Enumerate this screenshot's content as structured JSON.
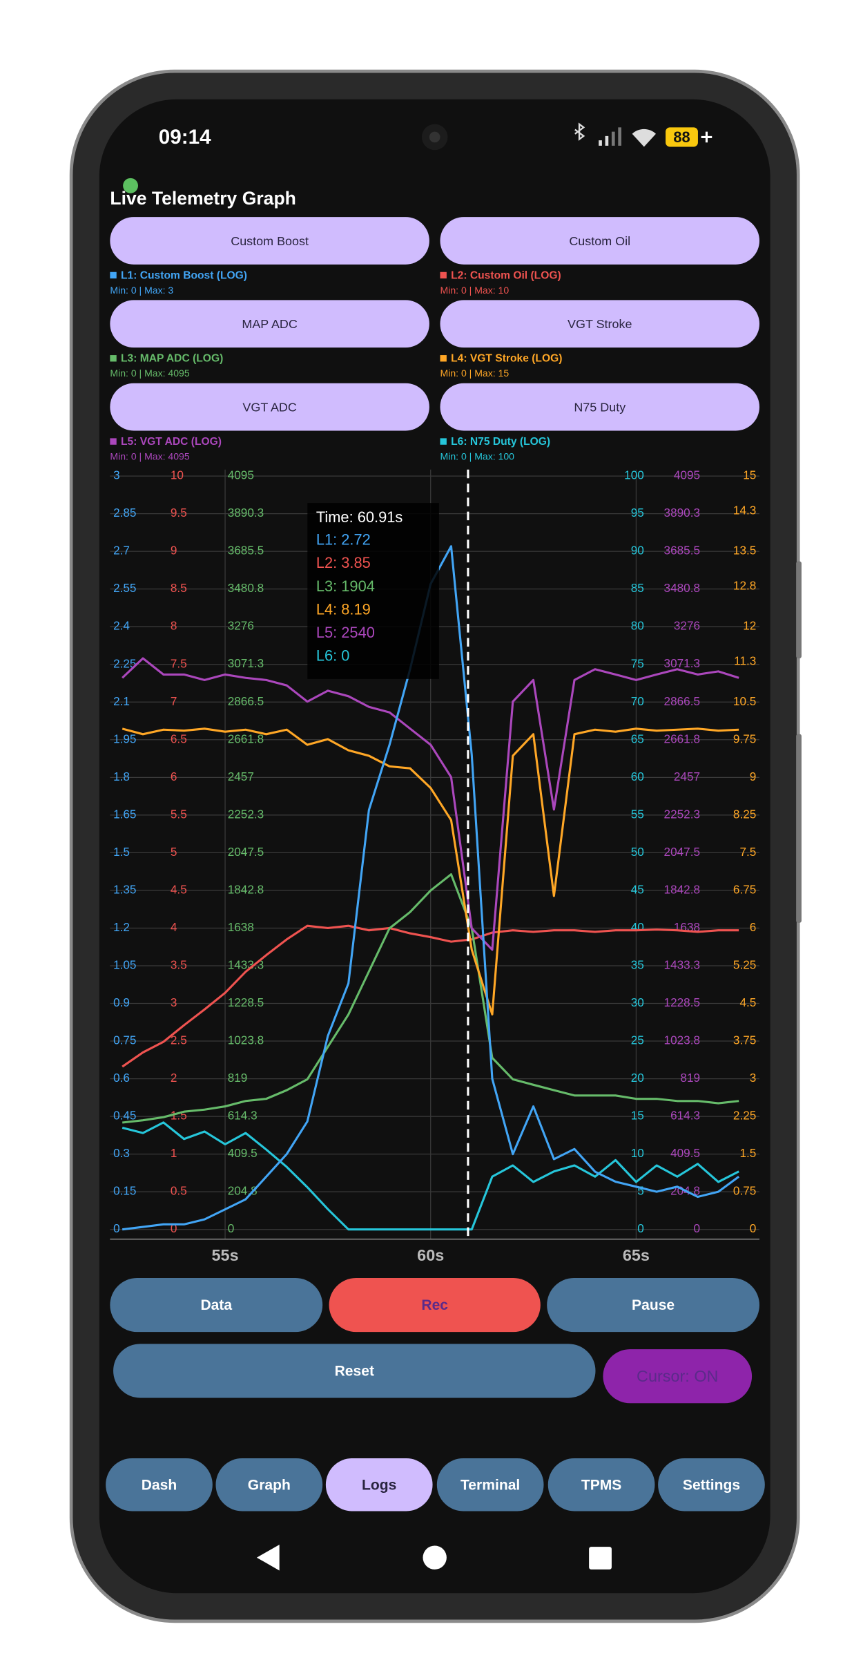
{
  "status_bar": {
    "time": "09:14",
    "battery": "88"
  },
  "title": "Live Telemetry Graph",
  "channels": [
    {
      "button": "Custom Boost",
      "range": "Min: 0 | Max: 3"
    },
    {
      "button": "Custom Oil",
      "range": "Min: 0 | Max: 10"
    },
    {
      "button": "MAP ADC",
      "range": "Min: 0 | Max: 4095"
    },
    {
      "button": "VGT Stroke",
      "range": "Min: 0 | Max: 15"
    },
    {
      "button": "VGT ADC",
      "range": "Min: 0 | Max: 4095"
    },
    {
      "button": "N75 Duty",
      "range": "Min: 0 | Max: 100"
    }
  ],
  "chart_data": {
    "type": "line",
    "x": [
      52.5,
      53,
      53.5,
      54,
      54.5,
      55,
      55.5,
      56,
      56.5,
      57,
      57.5,
      58,
      58.5,
      59,
      59.5,
      60,
      60.5,
      61,
      61.5,
      62,
      62.5,
      63,
      63.5,
      64,
      64.5,
      65,
      65.5,
      66,
      66.5,
      67,
      67.5
    ],
    "xlim": [
      52.2,
      68
    ],
    "xticks": [
      {
        "value": 55,
        "label": "55s"
      },
      {
        "value": 60,
        "label": "60s"
      },
      {
        "value": 65,
        "label": "65s"
      }
    ],
    "grid": true,
    "series": [
      {
        "name": "L1: Custom Boost (LOG)",
        "color": "#42a5f5",
        "ylim": [
          0,
          3
        ],
        "yticks": [
          0,
          0.15,
          0.3,
          0.45,
          0.6,
          0.75,
          0.9,
          1.05,
          1.2,
          1.35,
          1.5,
          1.65,
          1.8,
          1.95,
          2.1,
          2.25,
          2.4,
          2.55,
          2.7,
          2.85,
          3
        ],
        "values": [
          0,
          0.01,
          0.02,
          0.02,
          0.04,
          0.08,
          0.12,
          0.21,
          0.3,
          0.43,
          0.77,
          0.98,
          1.67,
          1.93,
          2.23,
          2.57,
          2.72,
          1.89,
          0.6,
          0.3,
          0.49,
          0.28,
          0.32,
          0.23,
          0.19,
          0.17,
          0.15,
          0.17,
          0.13,
          0.15,
          0.21
        ]
      },
      {
        "name": "L2: Custom Oil (LOG)",
        "color": "#ef5350",
        "ylim": [
          0,
          10
        ],
        "yticks": [
          0,
          0.5,
          1,
          1.5,
          2,
          2.5,
          3,
          3.5,
          4,
          4.5,
          5,
          5.5,
          6,
          6.5,
          7,
          7.5,
          8,
          8.5,
          9,
          9.5,
          10
        ],
        "values": [
          2.16,
          2.35,
          2.49,
          2.71,
          2.92,
          3.14,
          3.42,
          3.64,
          3.85,
          4.03,
          4,
          4.03,
          3.97,
          4,
          3.93,
          3.88,
          3.82,
          3.85,
          3.94,
          3.97,
          3.95,
          3.97,
          3.97,
          3.95,
          3.97,
          3.97,
          3.98,
          3.97,
          3.95,
          3.97,
          3.97
        ]
      },
      {
        "name": "L3: MAP ADC (LOG)",
        "color": "#66bb6a",
        "ylim": [
          0,
          4095
        ],
        "yticks": [
          0,
          204.8,
          409.5,
          614.3,
          819,
          1023.8,
          1228.5,
          1433.3,
          1638,
          1842.8,
          2047.5,
          2252.3,
          2457,
          2661.8,
          2866.5,
          3071.3,
          3276,
          3480.8,
          3685.5,
          3890.3,
          4095
        ],
        "values": [
          581,
          593,
          610,
          640,
          651,
          669,
          698,
          710,
          757,
          816,
          992,
          1168,
          1402,
          1637,
          1725,
          1842,
          1930,
          1637,
          933,
          816,
          786,
          757,
          728,
          728,
          728,
          710,
          710,
          698,
          698,
          686,
          698
        ]
      },
      {
        "name": "L4: VGT Stroke (LOG)",
        "color": "#ffa726",
        "ylim": [
          0,
          15
        ],
        "yticks": [
          0,
          0.75,
          1.5,
          2.25,
          3,
          3.75,
          4.5,
          5.25,
          6,
          6.75,
          7.5,
          8.25,
          9,
          9.75,
          10.5,
          11.3,
          12,
          12.8,
          13.5,
          14.3,
          15
        ],
        "values": [
          9.97,
          9.86,
          9.95,
          9.93,
          9.97,
          9.91,
          9.95,
          9.86,
          9.95,
          9.65,
          9.76,
          9.54,
          9.43,
          9.22,
          9.18,
          8.79,
          8.15,
          5.57,
          4.28,
          9.43,
          9.86,
          6.64,
          9.86,
          9.95,
          9.91,
          9.97,
          9.93,
          9.95,
          9.97,
          9.93,
          9.95
        ]
      },
      {
        "name": "L5: VGT ADC (LOG)",
        "color": "#ab47bc",
        "ylim": [
          0,
          4095
        ],
        "yticks": [
          0,
          204.8,
          409.5,
          614.3,
          819,
          1023.8,
          1228.5,
          1433.3,
          1638,
          1842.8,
          2047.5,
          2252.3,
          2457,
          2661.8,
          2866.5,
          3071.3,
          3276,
          3480.8,
          3685.5,
          3890.3,
          4095
        ],
        "values": [
          2998,
          3104,
          3016,
          3016,
          2986,
          3016,
          2998,
          2986,
          2957,
          2869,
          2928,
          2898,
          2840,
          2810,
          2722,
          2634,
          2458,
          1637,
          1520,
          2869,
          2986,
          2282,
          2986,
          3045,
          3016,
          2986,
          3016,
          3045,
          3016,
          3033,
          2998
        ]
      },
      {
        "name": "L6: N75 Duty (LOG)",
        "color": "#26c6da",
        "ylim": [
          0,
          100
        ],
        "yticks": [
          0,
          5,
          10,
          15,
          20,
          25,
          30,
          35,
          40,
          45,
          50,
          55,
          60,
          65,
          70,
          75,
          80,
          85,
          90,
          95,
          100
        ],
        "values": [
          13.5,
          12.8,
          14.2,
          12,
          13,
          11.3,
          12.8,
          10.6,
          8.3,
          5.6,
          2.7,
          0,
          0,
          0,
          0,
          0,
          0,
          0,
          7,
          8.5,
          6.3,
          7.7,
          8.5,
          7,
          9.2,
          6.3,
          8.5,
          7,
          8.7,
          6.3,
          7.7
        ]
      }
    ],
    "cursor": {
      "x": 60.91,
      "label": "Time: 60.91s",
      "readouts": [
        "L1: 2.72",
        "L2: 3.85",
        "L3: 1904",
        "L4: 8.19",
        "L5: 2540",
        "L6: 0"
      ]
    }
  },
  "controls": [
    "Data",
    "Rec",
    "Pause",
    "Reset",
    "Cursor: ON"
  ],
  "tabs": [
    "Dash",
    "Graph",
    "Logs",
    "Terminal",
    "TPMS",
    "Settings"
  ]
}
